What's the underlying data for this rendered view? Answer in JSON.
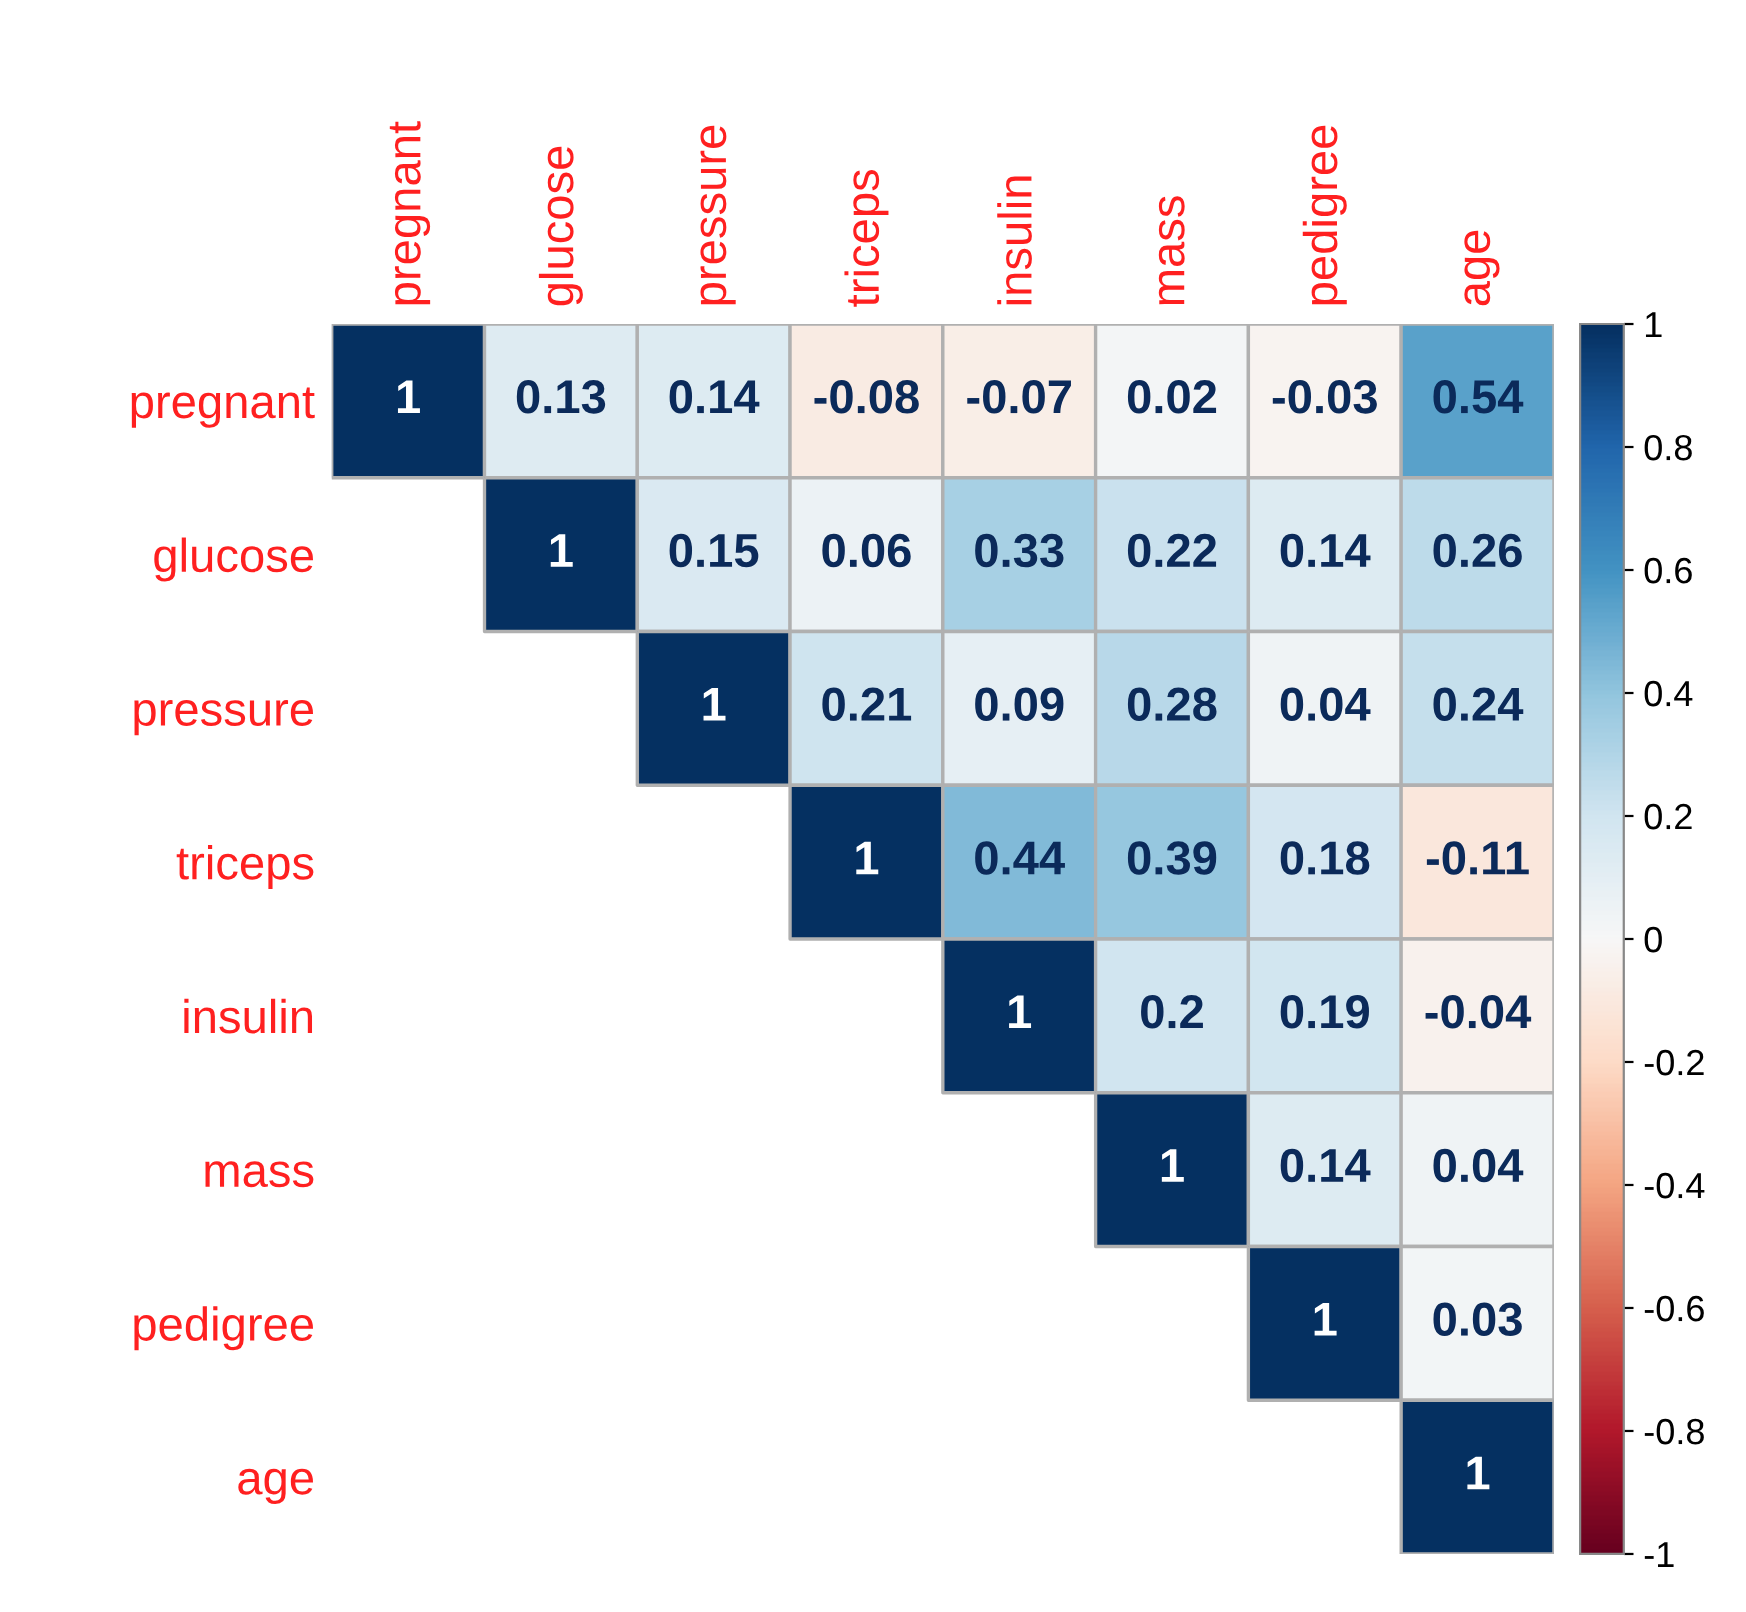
{
  "chart_data": {
    "type": "heatmap",
    "categories": [
      "pregnant",
      "glucose",
      "pressure",
      "triceps",
      "insulin",
      "mass",
      "pedigree",
      "age"
    ],
    "y_categories": [
      "pregnant",
      "glucose",
      "pressure",
      "triceps",
      "insulin",
      "mass",
      "pedigree",
      "age"
    ],
    "cells": [
      [
        1,
        0.13,
        0.14,
        -0.08,
        -0.07,
        0.02,
        -0.03,
        0.54
      ],
      [
        null,
        1,
        0.15,
        0.06,
        0.33,
        0.22,
        0.14,
        0.26
      ],
      [
        null,
        null,
        1,
        0.21,
        0.09,
        0.28,
        0.04,
        0.24
      ],
      [
        null,
        null,
        null,
        1,
        0.44,
        0.39,
        0.18,
        -0.11
      ],
      [
        null,
        null,
        null,
        null,
        1,
        0.2,
        0.19,
        -0.04
      ],
      [
        null,
        null,
        null,
        null,
        null,
        1,
        0.14,
        0.04
      ],
      [
        null,
        null,
        null,
        null,
        null,
        null,
        1,
        0.03
      ],
      [
        null,
        null,
        null,
        null,
        null,
        null,
        null,
        1
      ]
    ],
    "data_labels": true,
    "clim": [
      -1,
      1
    ],
    "cticks": [
      -1,
      -0.8,
      -0.6,
      -0.4,
      -0.2,
      0,
      0.2,
      0.4,
      0.6,
      0.8,
      1
    ]
  }
}
